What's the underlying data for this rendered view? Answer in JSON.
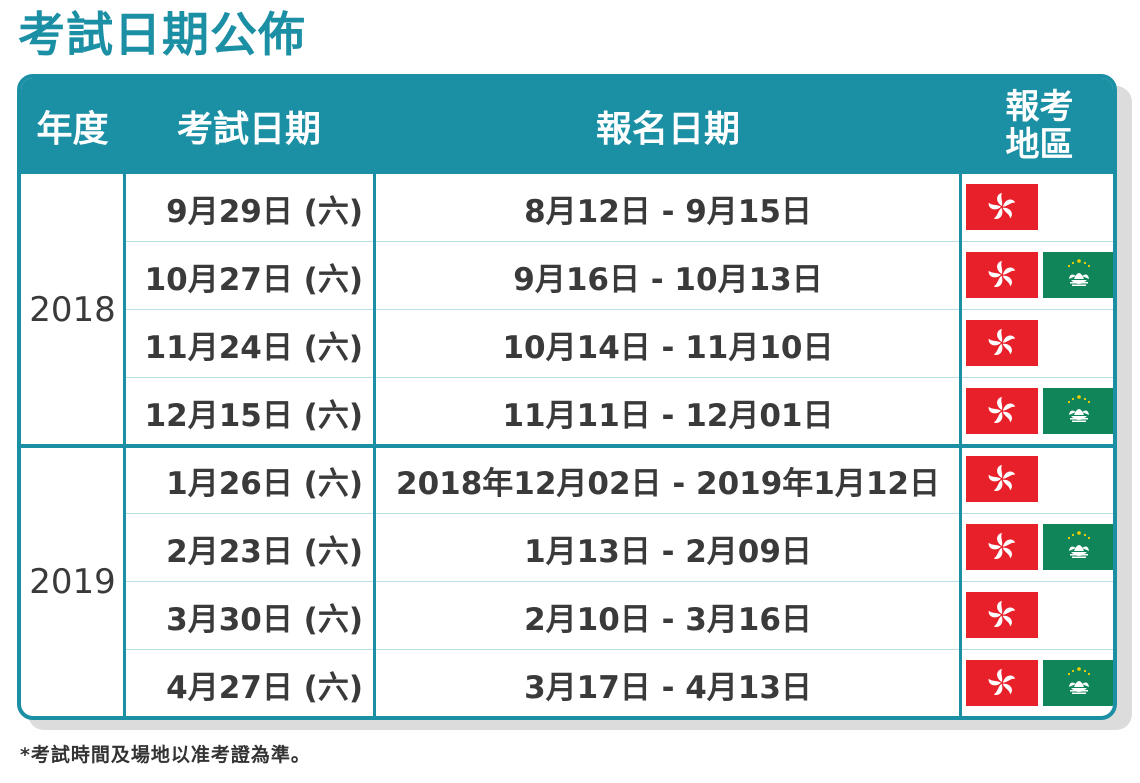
{
  "title": "考試日期公佈",
  "header": {
    "year": "年度",
    "exam_date": "考試日期",
    "registration_date": "報名日期",
    "region_line1": "報考",
    "region_line2": "地區"
  },
  "groups": [
    {
      "year": "2018",
      "rows": [
        {
          "exam_date": "9月29日 (六)",
          "registration": "8月12日 - 9月15日",
          "regions": [
            "hong-kong"
          ]
        },
        {
          "exam_date": "10月27日 (六)",
          "registration": "9月16日 - 10月13日",
          "regions": [
            "hong-kong",
            "macau"
          ]
        },
        {
          "exam_date": "11月24日 (六)",
          "registration": "10月14日 - 11月10日",
          "regions": [
            "hong-kong"
          ]
        },
        {
          "exam_date": "12月15日 (六)",
          "registration": "11月11日 - 12月01日",
          "regions": [
            "hong-kong",
            "macau"
          ]
        }
      ]
    },
    {
      "year": "2019",
      "rows": [
        {
          "exam_date": "1月26日 (六)",
          "registration": "2018年12月02日 - 2019年1月12日",
          "regions": [
            "hong-kong"
          ]
        },
        {
          "exam_date": "2月23日 (六)",
          "registration": "1月13日 - 2月09日",
          "regions": [
            "hong-kong",
            "macau"
          ]
        },
        {
          "exam_date": "3月30日 (六)",
          "registration": "2月10日 - 3月16日",
          "regions": [
            "hong-kong"
          ]
        },
        {
          "exam_date": "4月27日 (六)",
          "registration": "3月17日 - 4月13日",
          "regions": [
            "hong-kong",
            "macau"
          ]
        }
      ]
    }
  ],
  "footnote": "*考試時間及場地以准考證為準。",
  "colors": {
    "teal": "#1b8fa4",
    "hk_red": "#e8202a",
    "macau_green": "#11855a"
  }
}
